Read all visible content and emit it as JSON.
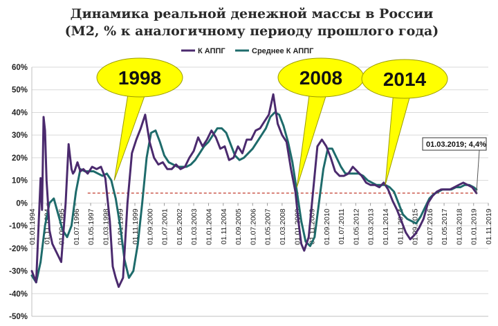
{
  "chart_data": {
    "type": "line",
    "title": "Динамика реальной денежной массы в России",
    "subtitle": "(М2, % к аналогичному периоду прошлого года)",
    "xlabel": "",
    "ylabel": "",
    "ylim": [
      -50,
      60
    ],
    "yticks": [
      -50,
      -40,
      -30,
      -20,
      -10,
      0,
      10,
      20,
      30,
      40,
      50,
      60
    ],
    "ytick_labels": [
      "-50%",
      "-40%",
      "-30%",
      "-20%",
      "-10%",
      "0%",
      "10%",
      "20%",
      "30%",
      "40%",
      "50%",
      "60%"
    ],
    "xlim": [
      "1994-01-01",
      "2019-11-01"
    ],
    "x_tick_labels": [
      "01.01.1994",
      "01.11.1994",
      "01.09.1995",
      "01.07.1996",
      "01.05.1997",
      "01.03.1998",
      "01.01.1999",
      "01.11.1999",
      "01.09.2000",
      "01.07.2001",
      "01.05.2002",
      "01.03.2003",
      "01.01.2004",
      "01.11.2004",
      "01.09.2005",
      "01.07.2006",
      "01.05.2007",
      "01.03.2008",
      "01.01.2009",
      "01.11.2009",
      "01.09.2010",
      "01.07.2011",
      "01.05.2012",
      "01.03.2013",
      "01.01.2014",
      "01.11.2014",
      "01.09.2015",
      "01.07.2016",
      "01.05.2017",
      "01.03.2018",
      "01.01.2019",
      "01.11.2019"
    ],
    "x_tick_dates": [
      "1994-01-01",
      "1994-11-01",
      "1995-09-01",
      "1996-07-01",
      "1997-05-01",
      "1998-03-01",
      "1999-01-01",
      "1999-11-01",
      "2000-09-01",
      "2001-07-01",
      "2002-05-01",
      "2003-03-01",
      "2004-01-01",
      "2004-11-01",
      "2005-09-01",
      "2006-07-01",
      "2007-05-01",
      "2008-03-01",
      "2009-01-01",
      "2009-11-01",
      "2010-09-01",
      "2011-07-01",
      "2012-05-01",
      "2013-03-01",
      "2014-01-01",
      "2014-11-01",
      "2015-09-01",
      "2016-07-01",
      "2017-05-01",
      "2018-03-01",
      "2019-01-01",
      "2019-11-01"
    ],
    "grid": true,
    "legend_position": "top",
    "reference_line": {
      "y": 4.4,
      "style": "dashed",
      "color": "#c0392b"
    },
    "series": [
      {
        "name": "К АППГ",
        "color": "#4b2a6e",
        "x": [
          "1994-01-01",
          "1994-04-01",
          "1994-07-01",
          "1994-08-01",
          "1994-09-01",
          "1994-10-01",
          "1994-11-01",
          "1994-12-01",
          "1995-01-01",
          "1995-03-01",
          "1995-06-01",
          "1995-09-01",
          "1995-12-01",
          "1996-02-01",
          "1996-04-01",
          "1996-05-01",
          "1996-06-01",
          "1996-08-01",
          "1996-10-01",
          "1996-12-01",
          "1997-03-01",
          "1997-06-01",
          "1997-09-01",
          "1997-12-01",
          "1998-03-01",
          "1998-06-01",
          "1998-08-01",
          "1998-10-01",
          "1998-12-01",
          "1999-03-01",
          "1999-06-01",
          "1999-09-01",
          "1999-12-01",
          "2000-03-01",
          "2000-06-01",
          "2000-09-01",
          "2000-12-01",
          "2001-03-01",
          "2001-06-01",
          "2001-09-01",
          "2001-12-01",
          "2002-03-01",
          "2002-06-01",
          "2002-09-01",
          "2002-12-01",
          "2003-03-01",
          "2003-06-01",
          "2003-09-01",
          "2003-12-01",
          "2004-03-01",
          "2004-06-01",
          "2004-09-01",
          "2004-12-01",
          "2005-03-01",
          "2005-06-01",
          "2005-09-01",
          "2005-12-01",
          "2006-03-01",
          "2006-06-01",
          "2006-09-01",
          "2006-12-01",
          "2007-03-01",
          "2007-06-01",
          "2007-09-01",
          "2007-12-01",
          "2008-03-01",
          "2008-06-01",
          "2008-09-01",
          "2008-12-01",
          "2009-02-01",
          "2009-04-01",
          "2009-06-01",
          "2009-09-01",
          "2009-12-01",
          "2010-03-01",
          "2010-06-01",
          "2010-09-01",
          "2010-12-01",
          "2011-03-01",
          "2011-06-01",
          "2011-09-01",
          "2011-12-01",
          "2012-03-01",
          "2012-06-01",
          "2012-09-01",
          "2012-12-01",
          "2013-03-01",
          "2013-06-01",
          "2013-09-01",
          "2013-12-01",
          "2014-03-01",
          "2014-06-01",
          "2014-09-01",
          "2014-12-01",
          "2015-03-01",
          "2015-06-01",
          "2015-09-01",
          "2015-12-01",
          "2016-03-01",
          "2016-06-01",
          "2016-09-01",
          "2016-12-01",
          "2017-03-01",
          "2017-06-01",
          "2017-09-01",
          "2017-12-01",
          "2018-03-01",
          "2018-06-01",
          "2018-09-01",
          "2018-12-01",
          "2019-03-01"
        ],
        "y": [
          -30,
          -35,
          11,
          -3,
          38,
          32,
          10,
          0,
          -12,
          -18,
          -22,
          -26,
          0,
          26,
          15,
          13,
          14,
          18,
          14,
          15,
          13,
          16,
          15,
          16,
          11,
          -8,
          -28,
          -33,
          -37,
          -33,
          0,
          22,
          28,
          33,
          39,
          27,
          20,
          17,
          18,
          15,
          15,
          17,
          15,
          16,
          20,
          23,
          29,
          25,
          28,
          32,
          29,
          24,
          25,
          19,
          20,
          25,
          22,
          28,
          28,
          32,
          33,
          36,
          39,
          48,
          35,
          30,
          27,
          15,
          5,
          -8,
          -18,
          -21,
          -15,
          5,
          25,
          28,
          25,
          20,
          14,
          12,
          12,
          13,
          16,
          14,
          12,
          9,
          8,
          8,
          7,
          9,
          6,
          1,
          -3,
          -8,
          -13,
          -16,
          -14,
          -11,
          -7,
          0,
          3,
          5,
          6,
          6,
          6,
          7,
          8,
          9,
          8,
          7,
          4.4
        ]
      },
      {
        "name": "Среднее К АППГ",
        "color": "#1e6b6b",
        "x": [
          "1994-01-01",
          "1994-04-01",
          "1994-07-01",
          "1994-10-01",
          "1995-01-01",
          "1995-04-01",
          "1995-07-01",
          "1995-10-01",
          "1996-01-01",
          "1996-04-01",
          "1996-07-01",
          "1996-10-01",
          "1997-01-01",
          "1997-04-01",
          "1997-07-01",
          "1997-10-01",
          "1998-01-01",
          "1998-04-01",
          "1998-07-01",
          "1998-10-01",
          "1999-01-01",
          "1999-04-01",
          "1999-07-01",
          "1999-10-01",
          "2000-01-01",
          "2000-04-01",
          "2000-07-01",
          "2000-10-01",
          "2001-01-01",
          "2001-04-01",
          "2001-07-01",
          "2001-10-01",
          "2002-01-01",
          "2002-04-01",
          "2002-07-01",
          "2002-10-01",
          "2003-01-01",
          "2003-04-01",
          "2003-07-01",
          "2003-10-01",
          "2004-01-01",
          "2004-04-01",
          "2004-07-01",
          "2004-10-01",
          "2005-01-01",
          "2005-04-01",
          "2005-07-01",
          "2005-10-01",
          "2006-01-01",
          "2006-04-01",
          "2006-07-01",
          "2006-10-01",
          "2007-01-01",
          "2007-04-01",
          "2007-07-01",
          "2007-10-01",
          "2008-01-01",
          "2008-04-01",
          "2008-07-01",
          "2008-10-01",
          "2009-01-01",
          "2009-04-01",
          "2009-07-01",
          "2009-10-01",
          "2010-01-01",
          "2010-04-01",
          "2010-07-01",
          "2010-10-01",
          "2011-01-01",
          "2011-04-01",
          "2011-07-01",
          "2011-10-01",
          "2012-01-01",
          "2012-04-01",
          "2012-07-01",
          "2012-10-01",
          "2013-01-01",
          "2013-04-01",
          "2013-07-01",
          "2013-10-01",
          "2014-01-01",
          "2014-04-01",
          "2014-07-01",
          "2014-10-01",
          "2015-01-01",
          "2015-04-01",
          "2015-07-01",
          "2015-10-01",
          "2016-01-01",
          "2016-04-01",
          "2016-07-01",
          "2016-10-01",
          "2017-01-01",
          "2017-04-01",
          "2017-07-01",
          "2017-10-01",
          "2018-01-01",
          "2018-04-01",
          "2018-07-01",
          "2018-10-01",
          "2019-01-01",
          "2019-03-01"
        ],
        "y": [
          -32,
          -35,
          -26,
          -10,
          0,
          2,
          -5,
          -12,
          -15,
          -10,
          5,
          15,
          14,
          14,
          14,
          13,
          12,
          13,
          10,
          2,
          -10,
          -25,
          -33,
          -30,
          -18,
          0,
          20,
          31,
          32,
          27,
          21,
          18,
          17,
          16,
          16,
          16,
          17,
          19,
          22,
          25,
          27,
          30,
          33,
          33,
          31,
          26,
          21,
          19,
          20,
          22,
          24,
          27,
          30,
          33,
          38,
          40,
          39,
          34,
          27,
          18,
          5,
          -8,
          -17,
          -19,
          -15,
          0,
          15,
          24,
          24,
          20,
          16,
          13,
          13,
          13,
          13,
          12,
          10,
          9,
          8,
          8,
          8,
          7,
          5,
          0,
          -5,
          -7,
          -8,
          -9,
          -6,
          -2,
          2,
          4,
          5,
          6,
          6,
          6,
          7,
          7,
          8,
          8,
          7,
          6
        ]
      }
    ],
    "callouts": [
      {
        "text": "1998",
        "x": "1998-09-01",
        "y": 10
      },
      {
        "text": "2008",
        "x": "2009-01-01",
        "y": 7
      },
      {
        "text": "2014",
        "x": "2014-01-01",
        "y": 8
      }
    ],
    "annotation": {
      "text": "01.03.2019; 4,4%",
      "x": "2019-03-01",
      "y": 4.4
    }
  }
}
